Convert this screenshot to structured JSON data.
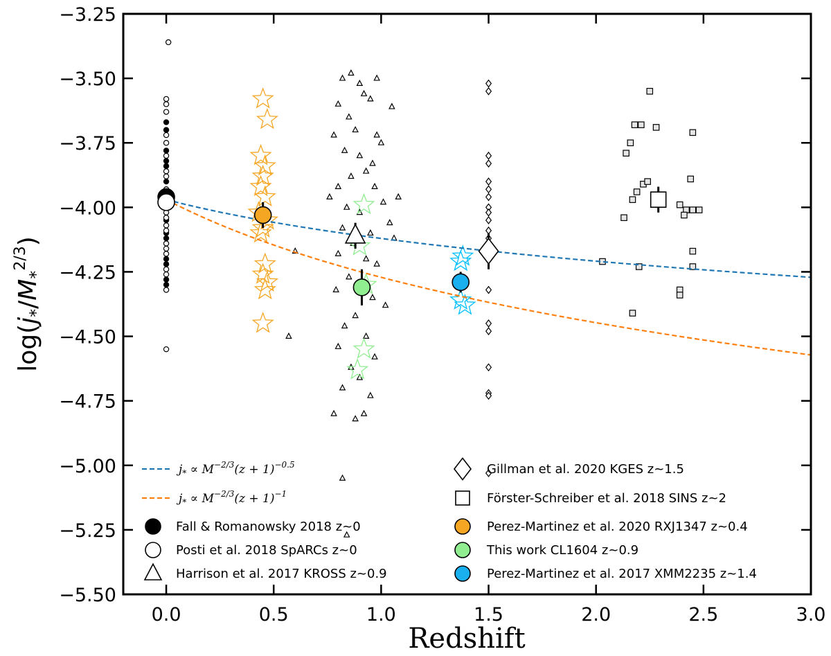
{
  "chart_data": {
    "type": "scatter",
    "title": "",
    "xlabel": "Redshift",
    "ylabel": "log(j*/M*^(2/3))",
    "xlim": [
      -0.2,
      3.0
    ],
    "ylim": [
      -5.5,
      -3.25
    ],
    "x_ticks": [
      0.0,
      0.5,
      1.0,
      1.5,
      2.0,
      2.5,
      3.0
    ],
    "x_tick_labels": [
      "0.0",
      "0.5",
      "1.0",
      "1.5",
      "2.0",
      "2.5",
      "3.0"
    ],
    "y_ticks": [
      -3.25,
      -3.5,
      -3.75,
      -4.0,
      -4.25,
      -4.5,
      -4.75,
      -5.0,
      -5.25,
      -5.5
    ],
    "y_tick_labels": [
      "−3.25",
      "−3.50",
      "−3.75",
      "−4.00",
      "−4.25",
      "−4.50",
      "−4.75",
      "−5.00",
      "−5.25",
      "−5.50"
    ],
    "grid": false,
    "curves": [
      {
        "name": "j* ∝ M^(-2/3)(z+1)^(-0.5)",
        "label_html": "j* ∝ M−2/3(z + 1)−0.5",
        "color": "#1f77b4",
        "style": "dashed",
        "z0": 0.0,
        "y0": -3.97,
        "exponent": -0.5
      },
      {
        "name": "j* ∝ M^(-2/3)(z+1)^(-1)",
        "label_html": "j* ∝ M−2/3(z + 1)−1",
        "color": "#ff7f0e",
        "style": "dashed",
        "z0": 0.0,
        "y0": -3.97,
        "exponent": -1.0
      }
    ],
    "series": [
      {
        "name": "Fall & Romanowsky 2018 z~0",
        "marker": "circle",
        "fill": "#000000",
        "stroke": "#000000",
        "points": [
          [
            0.0,
            -3.67
          ],
          [
            0.0,
            -3.7
          ],
          [
            0.0,
            -3.78
          ],
          [
            0.0,
            -3.82
          ],
          [
            0.0,
            -3.84
          ],
          [
            0.0,
            -3.9
          ],
          [
            0.0,
            -3.95
          ],
          [
            0.0,
            -4.05
          ],
          [
            0.0,
            -4.1
          ],
          [
            0.0,
            -4.12
          ],
          [
            0.0,
            -4.2
          ],
          [
            0.0,
            -4.22
          ],
          [
            0.0,
            -4.28
          ],
          [
            0.0,
            -4.3
          ]
        ]
      },
      {
        "name": "Posti et al. 2018 SpARCs z~0",
        "marker": "circle",
        "fill": "#ffffff",
        "stroke": "#000000",
        "points": [
          [
            0.01,
            -3.36
          ],
          [
            0.0,
            -3.58
          ],
          [
            0.0,
            -3.6
          ],
          [
            0.0,
            -3.63
          ],
          [
            0.0,
            -3.72
          ],
          [
            0.0,
            -3.75
          ],
          [
            0.0,
            -3.8
          ],
          [
            0.0,
            -3.86
          ],
          [
            0.0,
            -3.88
          ],
          [
            0.0,
            -3.93
          ],
          [
            0.0,
            -3.98
          ],
          [
            0.0,
            -4.0
          ],
          [
            0.0,
            -4.02
          ],
          [
            0.0,
            -4.04
          ],
          [
            0.0,
            -4.07
          ],
          [
            0.0,
            -4.09
          ],
          [
            0.0,
            -4.14
          ],
          [
            0.0,
            -4.16
          ],
          [
            0.0,
            -4.18
          ],
          [
            0.0,
            -4.24
          ],
          [
            0.0,
            -4.26
          ],
          [
            0.0,
            -4.32
          ],
          [
            0.0,
            -4.55
          ]
        ]
      },
      {
        "name": "Harrison et al. 2017 KROSS z~0.9",
        "marker": "triangle",
        "fill": "#ffffff",
        "stroke": "#000000",
        "points": [
          [
            0.82,
            -3.5
          ],
          [
            0.86,
            -3.48
          ],
          [
            0.9,
            -3.52
          ],
          [
            0.98,
            -3.5
          ],
          [
            1.05,
            -3.61
          ],
          [
            0.8,
            -3.6
          ],
          [
            0.92,
            -3.56
          ],
          [
            0.95,
            -3.58
          ],
          [
            0.85,
            -3.65
          ],
          [
            0.88,
            -3.7
          ],
          [
            0.98,
            -3.72
          ],
          [
            0.78,
            -3.72
          ],
          [
            0.83,
            -3.78
          ],
          [
            0.9,
            -3.8
          ],
          [
            0.96,
            -3.83
          ],
          [
            1.0,
            -3.75
          ],
          [
            0.86,
            -3.88
          ],
          [
            0.93,
            -3.86
          ],
          [
            0.8,
            -3.92
          ],
          [
            0.97,
            -3.92
          ],
          [
            1.01,
            -3.98
          ],
          [
            0.84,
            -4.0
          ],
          [
            0.9,
            -4.02
          ],
          [
            0.82,
            -4.08
          ],
          [
            0.95,
            -4.1
          ],
          [
            1.04,
            -4.06
          ],
          [
            0.87,
            -4.14
          ],
          [
            0.8,
            -4.18
          ],
          [
            0.93,
            -4.2
          ],
          [
            0.98,
            -4.22
          ],
          [
            0.85,
            -4.27
          ],
          [
            0.91,
            -4.3
          ],
          [
            0.79,
            -4.32
          ],
          [
            0.96,
            -4.35
          ],
          [
            1.02,
            -4.38
          ],
          [
            0.88,
            -4.42
          ],
          [
            0.83,
            -4.46
          ],
          [
            0.93,
            -4.5
          ],
          [
            0.8,
            -4.54
          ],
          [
            0.97,
            -4.58
          ],
          [
            0.86,
            -4.62
          ],
          [
            0.9,
            -4.66
          ],
          [
            0.82,
            -4.7
          ],
          [
            0.95,
            -4.73
          ],
          [
            0.78,
            -4.8
          ],
          [
            0.88,
            -4.82
          ],
          [
            0.92,
            -4.8
          ],
          [
            0.6,
            -4.17
          ],
          [
            0.57,
            -4.5
          ],
          [
            0.82,
            -5.05
          ],
          [
            0.84,
            -5.27
          ],
          [
            1.08,
            -3.96
          ],
          [
            1.06,
            -4.12
          ],
          [
            0.76,
            -3.96
          ]
        ]
      },
      {
        "name": "Gillman et al. 2020 KGES z~1.5",
        "marker": "diamond",
        "fill": "#ffffff",
        "stroke": "#000000",
        "points": [
          [
            1.5,
            -3.52
          ],
          [
            1.5,
            -3.55
          ],
          [
            1.5,
            -3.8
          ],
          [
            1.5,
            -3.83
          ],
          [
            1.5,
            -3.9
          ],
          [
            1.5,
            -3.93
          ],
          [
            1.5,
            -3.96
          ],
          [
            1.5,
            -4.0
          ],
          [
            1.5,
            -4.02
          ],
          [
            1.5,
            -4.05
          ],
          [
            1.5,
            -4.09
          ],
          [
            1.5,
            -4.12
          ],
          [
            1.5,
            -4.14
          ],
          [
            1.5,
            -4.17
          ],
          [
            1.5,
            -4.2
          ],
          [
            1.5,
            -4.32
          ],
          [
            1.5,
            -4.45
          ],
          [
            1.5,
            -4.48
          ],
          [
            1.5,
            -4.62
          ],
          [
            1.5,
            -4.72
          ],
          [
            1.5,
            -4.73
          ],
          [
            1.5,
            -5.03
          ]
        ]
      },
      {
        "name": "Förster-Schreiber et al. 2018 SINS z~2",
        "marker": "square",
        "fill": "#e6e6e6",
        "stroke": "#000000",
        "points": [
          [
            2.25,
            -3.55
          ],
          [
            2.18,
            -3.68
          ],
          [
            2.21,
            -3.68
          ],
          [
            2.28,
            -3.69
          ],
          [
            2.45,
            -3.71
          ],
          [
            2.16,
            -3.75
          ],
          [
            2.14,
            -3.79
          ],
          [
            2.22,
            -3.91
          ],
          [
            2.24,
            -3.9
          ],
          [
            2.19,
            -3.94
          ],
          [
            2.17,
            -3.97
          ],
          [
            2.44,
            -3.89
          ],
          [
            2.39,
            -3.99
          ],
          [
            2.42,
            -4.01
          ],
          [
            2.45,
            -4.01
          ],
          [
            2.48,
            -4.01
          ],
          [
            2.41,
            -4.03
          ],
          [
            2.13,
            -4.04
          ],
          [
            2.45,
            -4.17
          ],
          [
            2.03,
            -4.21
          ],
          [
            2.2,
            -4.23
          ],
          [
            2.45,
            -4.23
          ],
          [
            2.39,
            -4.32
          ],
          [
            2.39,
            -4.34
          ],
          [
            2.17,
            -4.41
          ]
        ]
      },
      {
        "name": "Perez-Martinez et al. 2020 RXJ1347 z~0.4",
        "marker": "star",
        "fill": "none",
        "stroke": "#f5a623",
        "points": [
          [
            0.45,
            -3.58
          ],
          [
            0.47,
            -3.66
          ],
          [
            0.44,
            -3.8
          ],
          [
            0.46,
            -3.84
          ],
          [
            0.45,
            -3.88
          ],
          [
            0.44,
            -3.92
          ],
          [
            0.46,
            -3.96
          ],
          [
            0.43,
            -4.02
          ],
          [
            0.47,
            -4.05
          ],
          [
            0.45,
            -4.08
          ],
          [
            0.44,
            -4.1
          ],
          [
            0.46,
            -4.22
          ],
          [
            0.45,
            -4.26
          ],
          [
            0.47,
            -4.29
          ],
          [
            0.46,
            -4.32
          ],
          [
            0.45,
            -4.45
          ]
        ]
      },
      {
        "name": "This work CL1604 z~0.9",
        "marker": "star",
        "fill": "none",
        "stroke": "#90ee90",
        "points": [
          [
            0.92,
            -3.99
          ],
          [
            0.9,
            -4.15
          ],
          [
            0.92,
            -4.55
          ],
          [
            0.89,
            -4.63
          ],
          [
            0.93,
            -4.3
          ]
        ]
      },
      {
        "name": "Perez-Martinez et al. 2017 XMM2235 z~1.4",
        "marker": "star",
        "fill": "none",
        "stroke": "#00bfff",
        "points": [
          [
            1.38,
            -4.19
          ],
          [
            1.37,
            -4.21
          ],
          [
            1.37,
            -4.36
          ],
          [
            1.39,
            -4.38
          ]
        ]
      }
    ],
    "summary_points": [
      {
        "name": "Fall & Romanowsky 2018 z~0",
        "marker": "circle",
        "x": 0.0,
        "y": -3.96,
        "err": 0.0,
        "fill": "#000000",
        "stroke": "#000000"
      },
      {
        "name": "Posti et al. 2018 SpARCs z~0",
        "marker": "circle",
        "x": 0.0,
        "y": -3.98,
        "err": 0.0,
        "fill": "#ffffff",
        "stroke": "#000000"
      },
      {
        "name": "Harrison et al. 2017 KROSS z~0.9",
        "marker": "triangle",
        "x": 0.88,
        "y": -4.11,
        "err": 0.05,
        "fill": "#ffffff",
        "stroke": "#000000"
      },
      {
        "name": "Gillman et al. 2020 KGES z~1.5",
        "marker": "diamond",
        "x": 1.5,
        "y": -4.17,
        "err": 0.07,
        "fill": "#ffffff",
        "stroke": "#000000"
      },
      {
        "name": "Förster-Schreiber et al. 2018 SINS z~2",
        "marker": "square",
        "x": 2.29,
        "y": -3.97,
        "err": 0.05,
        "fill": "#ffffff",
        "stroke": "#000000"
      },
      {
        "name": "Perez-Martinez et al. 2020 RXJ1347 z~0.4",
        "marker": "circle",
        "x": 0.45,
        "y": -4.03,
        "err": 0.05,
        "fill": "#f5a623",
        "stroke": "#000000"
      },
      {
        "name": "This work CL1604 z~0.9",
        "marker": "circle",
        "x": 0.91,
        "y": -4.31,
        "err": 0.07,
        "fill": "#90ee90",
        "stroke": "#000000"
      },
      {
        "name": "Perez-Martinez et al. 2017 XMM2235 z~1.4",
        "marker": "circle",
        "x": 1.37,
        "y": -4.29,
        "err": 0.04,
        "fill": "#1ab0f0",
        "stroke": "#000000"
      }
    ],
    "legend": {
      "placement": "lower",
      "left_column": [
        {
          "kind": "line",
          "color": "#1f77b4",
          "label": "j* ∝ M−2/3(z + 1)−0.5"
        },
        {
          "kind": "line",
          "color": "#ff7f0e",
          "label": "j* ∝ M−2/3(z + 1)−1"
        },
        {
          "kind": "circle",
          "fill": "#000000",
          "label": "Fall & Romanowsky 2018 z~0"
        },
        {
          "kind": "circle",
          "fill": "#ffffff",
          "label": "Posti et al. 2018 SpARCs z~0"
        },
        {
          "kind": "triangle",
          "fill": "#ffffff",
          "label": "Harrison et al. 2017 KROSS z~0.9"
        }
      ],
      "right_column": [
        {
          "kind": "diamond",
          "fill": "#ffffff",
          "label": "Gillman et al. 2020 KGES z~1.5"
        },
        {
          "kind": "square",
          "fill": "#ffffff",
          "label": "Förster-Schreiber et al. 2018 SINS z~2"
        },
        {
          "kind": "circle",
          "fill": "#f5a623",
          "label": "Perez-Martinez et al. 2020 RXJ1347 z~0.4"
        },
        {
          "kind": "circle",
          "fill": "#90ee90",
          "label": "This work CL1604 z~0.9"
        },
        {
          "kind": "circle",
          "fill": "#1ab0f0",
          "label": "Perez-Martinez et al. 2017 XMM2235 z~1.4"
        }
      ]
    }
  }
}
